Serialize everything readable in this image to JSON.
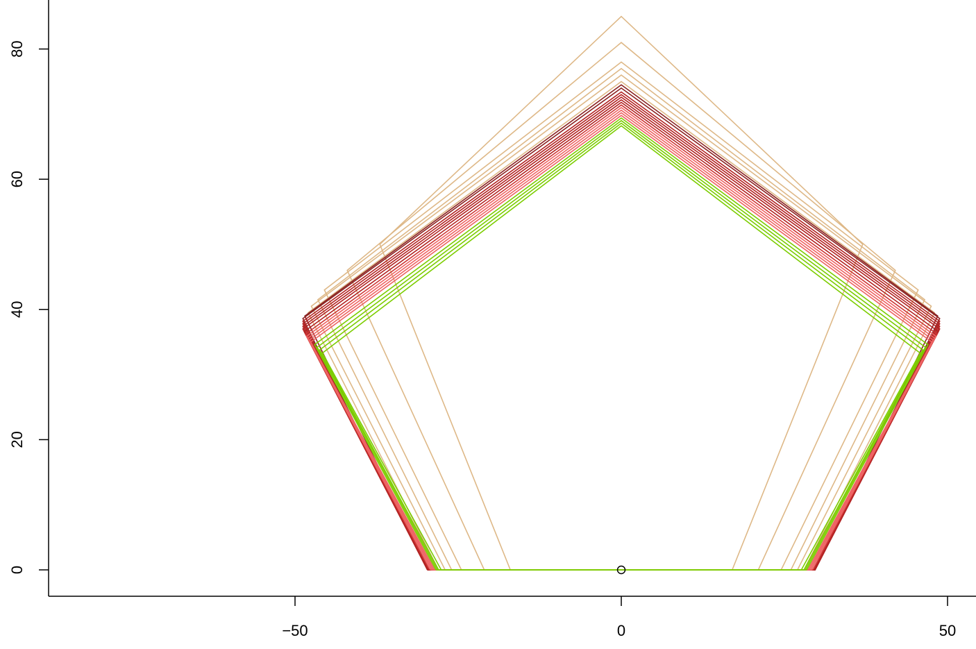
{
  "chart_data": {
    "type": "line",
    "title": "",
    "xlabel": "",
    "ylabel": "",
    "xlim": [
      -70,
      50
    ],
    "ylim": [
      -4,
      85
    ],
    "x_ticks": [
      -50,
      0,
      50
    ],
    "y_ticks": [
      0,
      20,
      40,
      60,
      80
    ],
    "x_tick_labels": [
      "−50",
      "0",
      "50"
    ],
    "y_tick_labels": [
      "0",
      "20",
      "40",
      "60",
      "80"
    ],
    "grid": false,
    "legend": "none",
    "description_of_marks": "Nested regular pentagons sharing a common bottom edge on y=0, each traced by its vertices.",
    "center_point": {
      "x": 0,
      "y": 0
    },
    "series": [
      {
        "color": "#DEB887",
        "values": [
          [
            -17.0,
            0
          ],
          [
            17.0,
            0
          ],
          [
            37.0,
            50.0
          ],
          [
            0,
            85.0
          ],
          [
            -37.0,
            50.0
          ],
          [
            -17.0,
            0
          ]
        ]
      },
      {
        "color": "#DEB887",
        "values": [
          [
            -21.0,
            0
          ],
          [
            21.0,
            0
          ],
          [
            42.0,
            46.0
          ],
          [
            0,
            81.0
          ],
          [
            -42.0,
            46.0
          ],
          [
            -21.0,
            0
          ]
        ]
      },
      {
        "color": "#DEB887",
        "values": [
          [
            -24.5,
            0
          ],
          [
            24.5,
            0
          ],
          [
            45.5,
            43.0
          ],
          [
            0,
            78.0
          ],
          [
            -45.5,
            43.0
          ],
          [
            -24.5,
            0
          ]
        ]
      },
      {
        "color": "#DEB887",
        "values": [
          [
            -26.0,
            0
          ],
          [
            26.0,
            0
          ],
          [
            46.5,
            41.5
          ],
          [
            0,
            77.0
          ],
          [
            -46.5,
            41.5
          ],
          [
            -26.0,
            0
          ]
        ]
      },
      {
        "color": "#DEB887",
        "values": [
          [
            -27.0,
            0
          ],
          [
            27.0,
            0
          ],
          [
            47.5,
            40.5
          ],
          [
            0,
            76.0
          ],
          [
            -47.5,
            40.5
          ],
          [
            -27.0,
            0
          ]
        ]
      },
      {
        "color": "#DEB887",
        "values": [
          [
            -28.0,
            0
          ],
          [
            28.0,
            0
          ],
          [
            48.0,
            39.5
          ],
          [
            0,
            75.0
          ],
          [
            -48.0,
            39.5
          ],
          [
            -28.0,
            0
          ]
        ]
      },
      {
        "color": "#8B2323",
        "values": [
          [
            -29.5,
            0
          ],
          [
            29.5,
            0
          ],
          [
            48.5,
            39.0
          ],
          [
            0,
            74.5
          ],
          [
            -48.5,
            39.0
          ],
          [
            -29.5,
            0
          ]
        ]
      },
      {
        "color": "#8B2323",
        "values": [
          [
            -29.7,
            0
          ],
          [
            29.7,
            0
          ],
          [
            48.8,
            38.6
          ],
          [
            0,
            74.0
          ],
          [
            -48.8,
            38.6
          ],
          [
            -29.7,
            0
          ]
        ]
      },
      {
        "color": "#B22222",
        "values": [
          [
            -29.7,
            0
          ],
          [
            29.7,
            0
          ],
          [
            48.8,
            38.2
          ],
          [
            0,
            73.4
          ],
          [
            -48.8,
            38.2
          ],
          [
            -29.7,
            0
          ]
        ]
      },
      {
        "color": "#B22222",
        "values": [
          [
            -29.7,
            0
          ],
          [
            29.7,
            0
          ],
          [
            48.8,
            37.8
          ],
          [
            0,
            73.0
          ],
          [
            -48.8,
            37.8
          ],
          [
            -29.7,
            0
          ]
        ]
      },
      {
        "color": "#B22222",
        "values": [
          [
            -29.7,
            0
          ],
          [
            29.7,
            0
          ],
          [
            48.8,
            37.4
          ],
          [
            0,
            72.6
          ],
          [
            -48.8,
            37.4
          ],
          [
            -29.7,
            0
          ]
        ]
      },
      {
        "color": "#B22222",
        "values": [
          [
            -29.7,
            0
          ],
          [
            29.7,
            0
          ],
          [
            48.8,
            37.0
          ],
          [
            0,
            72.2
          ],
          [
            -48.8,
            37.0
          ],
          [
            -29.7,
            0
          ]
        ]
      },
      {
        "color": "#B22222",
        "values": [
          [
            -29.6,
            0
          ],
          [
            29.6,
            0
          ],
          [
            48.6,
            36.6
          ],
          [
            0,
            71.8
          ],
          [
            -48.6,
            36.6
          ],
          [
            -29.6,
            0
          ]
        ]
      },
      {
        "color": "#CD3333",
        "values": [
          [
            -29.4,
            0
          ],
          [
            29.4,
            0
          ],
          [
            48.4,
            36.2
          ],
          [
            0,
            71.4
          ],
          [
            -48.4,
            36.2
          ],
          [
            -29.4,
            0
          ]
        ]
      },
      {
        "color": "#EE6363",
        "values": [
          [
            -29.2,
            0
          ],
          [
            29.2,
            0
          ],
          [
            48.2,
            35.9
          ],
          [
            0,
            71.0
          ],
          [
            -48.2,
            35.9
          ],
          [
            -29.2,
            0
          ]
        ]
      },
      {
        "color": "#EE6363",
        "values": [
          [
            -29.0,
            0
          ],
          [
            29.0,
            0
          ],
          [
            48.0,
            35.6
          ],
          [
            0,
            70.6
          ],
          [
            -48.0,
            35.6
          ],
          [
            -29.0,
            0
          ]
        ]
      },
      {
        "color": "#EE6363",
        "values": [
          [
            -28.8,
            0
          ],
          [
            28.8,
            0
          ],
          [
            47.8,
            35.3
          ],
          [
            0,
            70.2
          ],
          [
            -47.8,
            35.3
          ],
          [
            -28.8,
            0
          ]
        ]
      },
      {
        "color": "#EE6363",
        "values": [
          [
            -28.6,
            0
          ],
          [
            28.6,
            0
          ],
          [
            47.6,
            35.0
          ],
          [
            0,
            69.8
          ],
          [
            -47.6,
            35.0
          ],
          [
            -28.6,
            0
          ]
        ]
      },
      {
        "color": "#7CCD00",
        "values": [
          [
            -28.4,
            0
          ],
          [
            28.4,
            0
          ],
          [
            47.0,
            34.6
          ],
          [
            0,
            69.4
          ],
          [
            -47.0,
            34.6
          ],
          [
            -28.4,
            0
          ]
        ]
      },
      {
        "color": "#7CCD00",
        "values": [
          [
            -28.2,
            0
          ],
          [
            28.2,
            0
          ],
          [
            46.6,
            34.2
          ],
          [
            0,
            69.0
          ],
          [
            -46.6,
            34.2
          ],
          [
            -28.2,
            0
          ]
        ]
      },
      {
        "color": "#7CCD00",
        "values": [
          [
            -28.0,
            0
          ],
          [
            28.0,
            0
          ],
          [
            46.2,
            33.8
          ],
          [
            0,
            68.6
          ],
          [
            -46.2,
            33.8
          ],
          [
            -28.0,
            0
          ]
        ]
      },
      {
        "color": "#7CCD00",
        "values": [
          [
            -27.6,
            0
          ],
          [
            27.6,
            0
          ],
          [
            45.8,
            33.3
          ],
          [
            0,
            68.2
          ],
          [
            -45.8,
            33.3
          ],
          [
            -27.6,
            0
          ]
        ]
      }
    ]
  }
}
